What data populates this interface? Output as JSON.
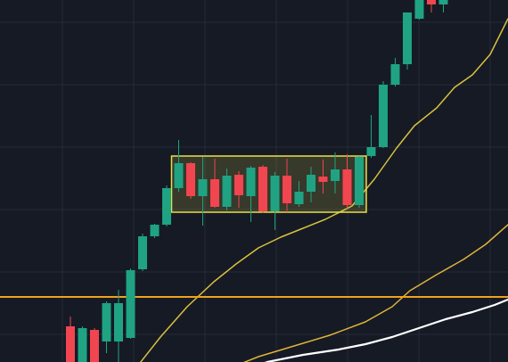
{
  "colors": {
    "background": "#161a25",
    "grid": "#262b38",
    "bullish": "#1fa383",
    "bearish": "#f1454f",
    "ma_fast": "#d8c23d",
    "ma_slow": "#e0b436",
    "ma_long": "#ffffff",
    "horizontal_level": "#f0a21c",
    "consolidation_box": "#e8e04a"
  },
  "chart_data": {
    "type": "candlestick",
    "y_axis": {
      "min": 0,
      "max": 406,
      "direction": "up"
    },
    "candles": [
      {
        "o": 40,
        "h": 51,
        "l": 0,
        "c": 0
      },
      {
        "o": 0,
        "h": 40,
        "l": 0,
        "c": 38
      },
      {
        "o": 36,
        "h": 38,
        "l": 0,
        "c": 0
      },
      {
        "o": 23,
        "h": 68,
        "l": 10,
        "c": 66
      },
      {
        "o": 23,
        "h": 81,
        "l": 0,
        "c": 66
      },
      {
        "o": 27,
        "h": 105,
        "l": 26,
        "c": 103
      },
      {
        "o": 104,
        "h": 144,
        "l": 102,
        "c": 141
      },
      {
        "o": 141,
        "h": 155,
        "l": 139,
        "c": 154
      },
      {
        "o": 154,
        "h": 198,
        "l": 152,
        "c": 195
      },
      {
        "o": 195,
        "h": 249,
        "l": 191,
        "c": 223
      },
      {
        "o": 223,
        "h": 224,
        "l": 183,
        "c": 186
      },
      {
        "o": 186,
        "h": 230,
        "l": 153,
        "c": 205
      },
      {
        "o": 205,
        "h": 228,
        "l": 173,
        "c": 174
      },
      {
        "o": 174,
        "h": 217,
        "l": 170,
        "c": 209
      },
      {
        "o": 210,
        "h": 214,
        "l": 173,
        "c": 187
      },
      {
        "o": 186,
        "h": 220,
        "l": 157,
        "c": 218
      },
      {
        "o": 219,
        "h": 221,
        "l": 167,
        "c": 169
      },
      {
        "o": 169,
        "h": 213,
        "l": 148,
        "c": 209
      },
      {
        "o": 209,
        "h": 228,
        "l": 168,
        "c": 178
      },
      {
        "o": 177,
        "h": 203,
        "l": 174,
        "c": 191
      },
      {
        "o": 191,
        "h": 219,
        "l": 179,
        "c": 210
      },
      {
        "o": 208,
        "h": 227,
        "l": 189,
        "c": 202
      },
      {
        "o": 203,
        "h": 235,
        "l": 189,
        "c": 216
      },
      {
        "o": 216,
        "h": 233,
        "l": 172,
        "c": 176
      },
      {
        "o": 176,
        "h": 231,
        "l": 173,
        "c": 230
      },
      {
        "o": 231,
        "h": 277,
        "l": 229,
        "c": 241
      },
      {
        "o": 241,
        "h": 315,
        "l": 240,
        "c": 311
      },
      {
        "o": 311,
        "h": 341,
        "l": 309,
        "c": 334
      },
      {
        "o": 334,
        "h": 392,
        "l": 328,
        "c": 392
      },
      {
        "o": 385,
        "h": 406,
        "l": 384,
        "c": 406
      },
      {
        "o": 406,
        "h": 406,
        "l": 392,
        "c": 401
      },
      {
        "o": 401,
        "h": 406,
        "l": 392,
        "c": 406
      }
    ],
    "ma_fast": [
      [
        150,
        -10
      ],
      [
        180,
        28
      ],
      [
        210,
        62
      ],
      [
        240,
        90
      ],
      [
        265,
        110
      ],
      [
        290,
        128
      ],
      [
        315,
        140
      ],
      [
        340,
        150
      ],
      [
        365,
        160
      ],
      [
        395,
        175
      ],
      [
        420,
        205
      ],
      [
        445,
        240
      ],
      [
        465,
        265
      ],
      [
        490,
        285
      ],
      [
        510,
        308
      ],
      [
        530,
        322
      ],
      [
        550,
        345
      ],
      [
        570,
        385
      ]
    ],
    "ma_slow": [
      [
        250,
        -10
      ],
      [
        290,
        6
      ],
      [
        330,
        18
      ],
      [
        370,
        30
      ],
      [
        410,
        45
      ],
      [
        440,
        62
      ],
      [
        460,
        80
      ],
      [
        490,
        98
      ],
      [
        520,
        115
      ],
      [
        545,
        132
      ],
      [
        570,
        154
      ]
    ],
    "ma_long": [
      [
        270,
        -10
      ],
      [
        300,
        0
      ],
      [
        340,
        8
      ],
      [
        380,
        14
      ],
      [
        410,
        20
      ],
      [
        440,
        28
      ],
      [
        470,
        38
      ],
      [
        500,
        48
      ],
      [
        530,
        56
      ],
      [
        555,
        64
      ],
      [
        570,
        70
      ]
    ],
    "horizontal_level": 73,
    "consolidation_box": {
      "from_candle": 9,
      "to_candle": 24,
      "top": 231,
      "bottom": 168
    }
  }
}
